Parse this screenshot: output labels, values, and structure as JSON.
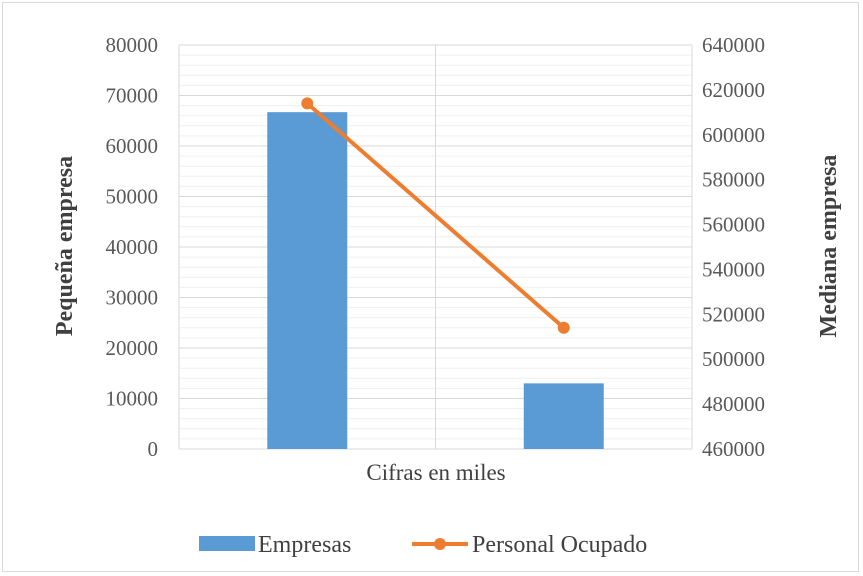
{
  "chart_data": {
    "type": "bar",
    "title": "",
    "xlabel": "Cifras en miles",
    "ylabel_left": "Pequeña empresa",
    "ylabel_right": "Mediana empresa",
    "ylim_left": [
      0,
      80000
    ],
    "ylim_right": [
      460000,
      640000
    ],
    "yticks_left": [
      "0",
      "10000",
      "20000",
      "30000",
      "40000",
      "50000",
      "60000",
      "70000",
      "80000"
    ],
    "yticks_right": [
      "460000",
      "480000",
      "500000",
      "520000",
      "540000",
      "560000",
      "580000",
      "600000",
      "620000",
      "640000"
    ],
    "grid": true,
    "legend_position": "bottom",
    "series": [
      {
        "name": "Empresas",
        "kind": "bar",
        "axis": "left",
        "color": "#5b9bd5",
        "values": [
          66700,
          13000
        ]
      },
      {
        "name": "Personal Ocupado",
        "kind": "line",
        "axis": "right",
        "color": "#ed7d31",
        "values": [
          614000,
          514000
        ]
      }
    ]
  }
}
